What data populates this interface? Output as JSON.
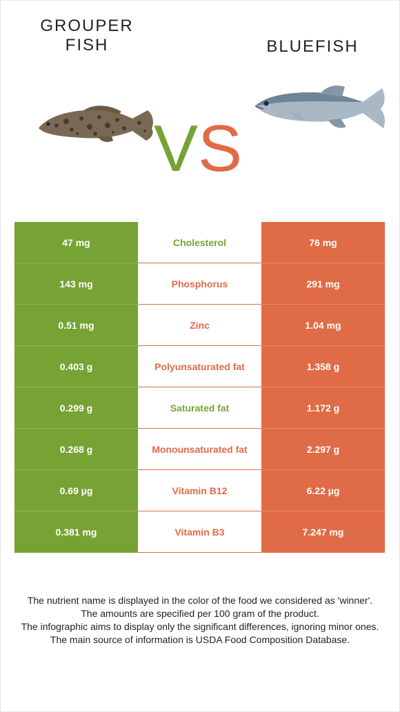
{
  "header": {
    "left_title_line1": "GROUPER",
    "left_title_line2": "FISH",
    "right_title": "BLUEFISH",
    "vs_v": "V",
    "vs_s": "S"
  },
  "colors": {
    "left_food": "#76a334",
    "right_food": "#e06b47"
  },
  "rows": [
    {
      "left": "47 mg",
      "nutrient": "Cholesterol",
      "right": "76 mg",
      "winner": "left"
    },
    {
      "left": "143 mg",
      "nutrient": "Phosphorus",
      "right": "291 mg",
      "winner": "right"
    },
    {
      "left": "0.51 mg",
      "nutrient": "Zinc",
      "right": "1.04 mg",
      "winner": "right"
    },
    {
      "left": "0.403 g",
      "nutrient": "Polyunsaturated fat",
      "right": "1.358 g",
      "winner": "right"
    },
    {
      "left": "0.299 g",
      "nutrient": "Saturated fat",
      "right": "1.172 g",
      "winner": "left"
    },
    {
      "left": "0.268 g",
      "nutrient": "Monounsaturated fat",
      "right": "2.297 g",
      "winner": "right"
    },
    {
      "left": "0.69 µg",
      "nutrient": "Vitamin B12",
      "right": "6.22 µg",
      "winner": "right"
    },
    {
      "left": "0.381 mg",
      "nutrient": "Vitamin B3",
      "right": "7.247 mg",
      "winner": "right"
    }
  ],
  "footer": {
    "line1": "The nutrient name is displayed in the color of the food we considered as 'winner'.",
    "line2": "The amounts are specified per 100 gram of the product.",
    "line3": "The infographic aims to display only the significant differences, ignoring minor ones.",
    "line4": "The main source of information is USDA Food Composition Database."
  }
}
